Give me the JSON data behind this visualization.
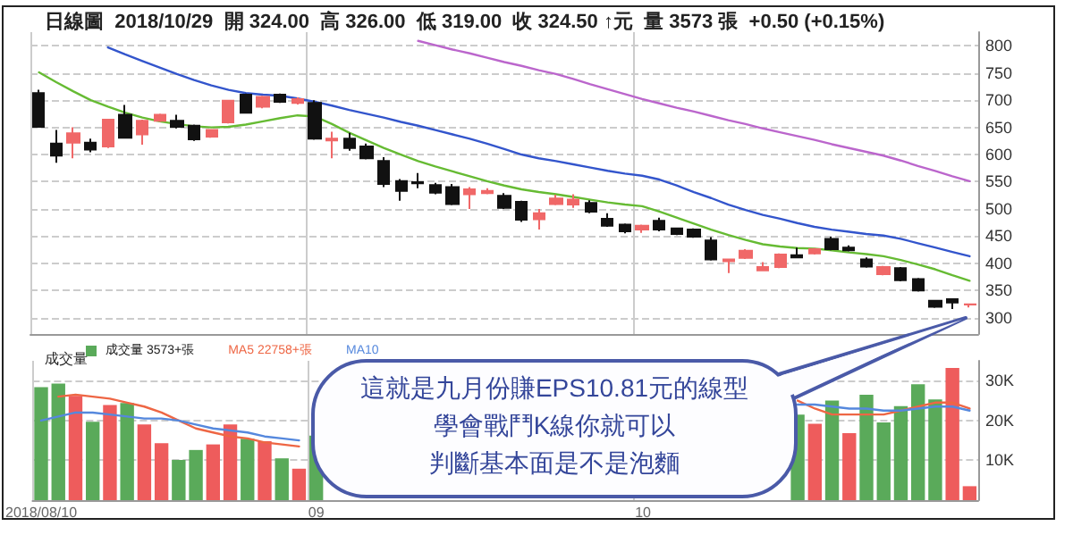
{
  "chart_data": [
    {
      "type": "candlestick",
      "title": "日線圖  2018/10/29  開 324.00  高 326.00  低 319.00  收 324.50 ↑元  量 3573 張  +0.50 (+0.15%)",
      "categories": [
        "2018/08/10",
        null,
        null,
        null,
        null,
        null,
        null,
        null,
        null,
        null,
        null,
        null,
        null,
        null,
        null,
        null,
        "09",
        null,
        null,
        null,
        null,
        null,
        null,
        null,
        null,
        null,
        null,
        null,
        null,
        null,
        null,
        null,
        null,
        null,
        null,
        "10",
        null,
        null,
        null,
        null,
        null,
        null,
        null,
        null,
        null,
        null,
        null,
        null,
        null,
        null,
        null,
        null,
        null,
        null,
        null
      ],
      "ohlc": [
        [
          713,
          719,
          651,
          651
        ],
        [
          620,
          645,
          585,
          598
        ],
        [
          622,
          650,
          593,
          639
        ],
        [
          622,
          629,
          604,
          609
        ],
        [
          615,
          664,
          612,
          664
        ],
        [
          673,
          691,
          629,
          631
        ],
        [
          637,
          664,
          618,
          662
        ],
        [
          662,
          675,
          660,
          673
        ],
        [
          662,
          673,
          648,
          651
        ],
        [
          653,
          655,
          625,
          628
        ],
        [
          633,
          647,
          631,
          645
        ],
        [
          659,
          700,
          657,
          699
        ],
        [
          710,
          712,
          675,
          677
        ],
        [
          688,
          708,
          685,
          706
        ],
        [
          710,
          712,
          695,
          697
        ],
        [
          695,
          705,
          692,
          702
        ],
        [
          695,
          700,
          627,
          629
        ],
        [
          626,
          642,
          593,
          629
        ],
        [
          629,
          640,
          607,
          612
        ],
        [
          615,
          620,
          591,
          593
        ],
        [
          588,
          595,
          540,
          546
        ],
        [
          551,
          555,
          515,
          533
        ],
        [
          549,
          566,
          538,
          547
        ],
        [
          544,
          548,
          527,
          530
        ],
        [
          540,
          546,
          507,
          509
        ],
        [
          527,
          540,
          500,
          536
        ],
        [
          529,
          538,
          527,
          533
        ],
        [
          524,
          529,
          500,
          502
        ],
        [
          513,
          515,
          476,
          480
        ],
        [
          481,
          500,
          462,
          492
        ],
        [
          509,
          526,
          507,
          519
        ],
        [
          508,
          527,
          502,
          517
        ],
        [
          511,
          516,
          492,
          495
        ],
        [
          482,
          492,
          467,
          469
        ],
        [
          471,
          473,
          455,
          459
        ],
        [
          462,
          471,
          456,
          469
        ],
        [
          478,
          484,
          459,
          462
        ],
        [
          464,
          466,
          452,
          454
        ],
        [
          462,
          464,
          447,
          449
        ],
        [
          442,
          448,
          405,
          407
        ],
        [
          404,
          408,
          382,
          407
        ],
        [
          410,
          426,
          408,
          423
        ],
        [
          387,
          402,
          386,
          393
        ],
        [
          393,
          418,
          391,
          416
        ],
        [
          415,
          429,
          409,
          411
        ],
        [
          418,
          428,
          416,
          426
        ],
        [
          445,
          449,
          424,
          426
        ],
        [
          429,
          433,
          422,
          424
        ],
        [
          407,
          411,
          392,
          394
        ],
        [
          380,
          395,
          378,
          393
        ],
        [
          391,
          393,
          367,
          369
        ],
        [
          371,
          373,
          348,
          350
        ],
        [
          331,
          333,
          318,
          320
        ],
        [
          334,
          334,
          316,
          328
        ],
        [
          324,
          326,
          319,
          324.5
        ]
      ],
      "colors": [
        "#111111",
        "#111111",
        "#f06868",
        "#111111",
        "#f06868",
        "#111111",
        "#f06868",
        "#f06868",
        "#111111",
        "#111111",
        "#f06868",
        "#f06868",
        "#111111",
        "#f06868",
        "#111111",
        "#f06868",
        "#111111",
        "#f06868",
        "#111111",
        "#111111",
        "#111111",
        "#111111",
        "#111111",
        "#111111",
        "#111111",
        "#f06868",
        "#f06868",
        "#111111",
        "#111111",
        "#f06868",
        "#f06868",
        "#f06868",
        "#111111",
        "#111111",
        "#111111",
        "#f06868",
        "#111111",
        "#111111",
        "#111111",
        "#111111",
        "#f06868",
        "#f06868",
        "#f06868",
        "#f06868",
        "#111111",
        "#f06868",
        "#111111",
        "#111111",
        "#111111",
        "#f06868",
        "#111111",
        "#111111",
        "#111111",
        "#111111",
        "#f06868"
      ],
      "series": [
        {
          "type": "line",
          "color": "#66bb33",
          "values": [
            751,
            733,
            716,
            700,
            688,
            677,
            668,
            661,
            656,
            652,
            650,
            651,
            655,
            661,
            667,
            672,
            670,
            656,
            640,
            626,
            612,
            600,
            588,
            578,
            569,
            560,
            551,
            543,
            536,
            531,
            527,
            522,
            517,
            512,
            508,
            505,
            495,
            484,
            473,
            462,
            452,
            443,
            435,
            431,
            428,
            427,
            424,
            420,
            417,
            413,
            406,
            398,
            389,
            378,
            368
          ]
        },
        {
          "type": "line",
          "color": "#3355cc",
          "values": [
            null,
            null,
            null,
            null,
            797,
            784,
            772,
            760,
            748,
            737,
            727,
            719,
            713,
            710,
            708,
            703,
            697,
            690,
            682,
            675,
            668,
            660,
            653,
            645,
            637,
            629,
            620,
            610,
            600,
            593,
            588,
            582,
            576,
            570,
            565,
            561,
            554,
            543,
            531,
            520,
            508,
            498,
            489,
            482,
            474,
            467,
            462,
            458,
            454,
            451,
            445,
            437,
            429,
            421,
            413
          ]
        },
        {
          "type": "line",
          "color": "#bb66cc",
          "values": [
            null,
            null,
            null,
            null,
            null,
            null,
            null,
            null,
            null,
            null,
            null,
            null,
            null,
            null,
            null,
            null,
            null,
            null,
            null,
            null,
            null,
            null,
            809,
            801,
            793,
            786,
            778,
            770,
            763,
            755,
            748,
            739,
            729,
            720,
            711,
            702,
            694,
            686,
            679,
            671,
            663,
            656,
            648,
            641,
            634,
            627,
            619,
            612,
            605,
            598,
            589,
            579,
            570,
            560,
            551
          ]
        }
      ],
      "marker": "none",
      "ylim": [
        270,
        825
      ],
      "yticks": [
        300,
        350,
        400,
        450,
        500,
        550,
        600,
        650,
        700,
        750,
        800
      ],
      "grid": true,
      "tick_labels": "y",
      "annotations": [
        "這就是九月份賺EPS10.81元的線型",
        "學會戰鬥K線你就可以",
        "判斷基本面是不是泡麵"
      ]
    },
    {
      "type": "bar",
      "title": "成交量",
      "categories": [
        "2018/08/10",
        null,
        null,
        null,
        null,
        null,
        null,
        null,
        null,
        null,
        null,
        null,
        null,
        null,
        null,
        null,
        "09",
        null,
        null,
        null,
        null,
        null,
        null,
        null,
        null,
        null,
        null,
        null,
        null,
        null,
        null,
        null,
        null,
        null,
        null,
        "10",
        null,
        null,
        null,
        null,
        null,
        null,
        null,
        null,
        null,
        null,
        null,
        null,
        null,
        null,
        null,
        null,
        null,
        null,
        null
      ],
      "series": [
        {
          "type": "bar",
          "name": "成交量 3573+張",
          "values": [
            28.4,
            29.3,
            26.2,
            19.7,
            23.9,
            24.4,
            19.0,
            14.3,
            10.1,
            12.6,
            14.0,
            19.0,
            15.4,
            14.8,
            10.5,
            7.9,
            16.2,
            null,
            null,
            null,
            null,
            null,
            null,
            null,
            null,
            null,
            null,
            null,
            null,
            null,
            null,
            null,
            null,
            null,
            null,
            null,
            null,
            null,
            null,
            null,
            null,
            null,
            null,
            null,
            21.5,
            19.2,
            25.0,
            16.8,
            26.5,
            19.5,
            23.6,
            29.1,
            25.3,
            33.2,
            3.5
          ],
          "colors": [
            "#5aaa5a",
            "#5aaa5a",
            "#ee5c5c",
            "#5aaa5a",
            "#ee5c5c",
            "#5aaa5a",
            "#ee5c5c",
            "#ee5c5c",
            "#5aaa5a",
            "#5aaa5a",
            "#ee5c5c",
            "#ee5c5c",
            "#5aaa5a",
            "#ee5c5c",
            "#5aaa5a",
            "#ee5c5c",
            "#5aaa5a",
            null,
            null,
            null,
            null,
            null,
            null,
            null,
            null,
            null,
            null,
            null,
            null,
            null,
            null,
            null,
            null,
            null,
            null,
            null,
            null,
            null,
            null,
            null,
            null,
            null,
            null,
            null,
            "#5aaa5a",
            "#ee5c5c",
            "#5aaa5a",
            "#ee5c5c",
            "#5aaa5a",
            "#5aaa5a",
            "#5aaa5a",
            "#5aaa5a",
            "#5aaa5a",
            "#ee5c5c",
            "#ee5c5c"
          ]
        },
        {
          "type": "line",
          "name": "MA5 22758+張",
          "color": "#ee6644",
          "values": [
            null,
            26,
            26.5,
            26,
            25.5,
            24.5,
            23.5,
            22,
            20,
            18,
            17,
            16,
            15.5,
            14.5,
            14,
            13.5,
            null,
            null,
            null,
            null,
            null,
            null,
            null,
            null,
            null,
            null,
            null,
            null,
            null,
            null,
            null,
            null,
            null,
            null,
            null,
            null,
            null,
            null,
            null,
            null,
            null,
            null,
            null,
            null,
            25,
            23,
            21.5,
            21.5,
            21.5,
            21.5,
            22.5,
            23.5,
            24.5,
            24.5,
            23
          ]
        },
        {
          "type": "line",
          "name": "MA10",
          "color": "#5588dd",
          "values": [
            20,
            21,
            22,
            22,
            21.5,
            21,
            20.5,
            20.5,
            20,
            19,
            18,
            17.5,
            17,
            16,
            15.5,
            15,
            null,
            null,
            null,
            null,
            null,
            null,
            null,
            null,
            null,
            null,
            null,
            null,
            null,
            null,
            null,
            null,
            null,
            null,
            null,
            null,
            null,
            null,
            null,
            null,
            null,
            null,
            null,
            null,
            24,
            24,
            23.5,
            23,
            23,
            22.5,
            22.5,
            23,
            23.5,
            23.5,
            22.5
          ]
        }
      ],
      "marker": "none",
      "legend": "top left",
      "ylim": [
        0,
        35
      ],
      "yticks": [
        {
          "value": 10,
          "label": "10K"
        },
        {
          "value": 20,
          "label": "20K"
        },
        {
          "value": 30,
          "label": "30K"
        }
      ],
      "grid": true
    }
  ]
}
